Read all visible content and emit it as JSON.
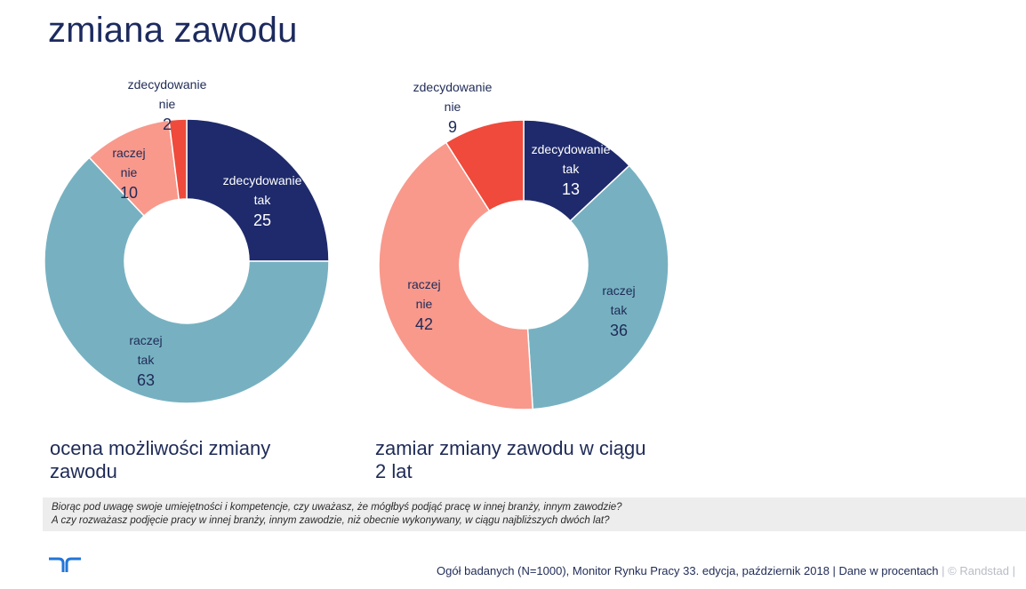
{
  "page": {
    "title": "zmiana zawodu"
  },
  "chart_data": [
    {
      "type": "donut",
      "caption": "ocena możliwości zmiany zawodu",
      "unit": "%",
      "slices": [
        {
          "label": "zdecydowanie tak",
          "value": 25,
          "color": "#1e2a6b"
        },
        {
          "label": "raczej tak",
          "value": 63,
          "color": "#77b1c1"
        },
        {
          "label": "raczej nie",
          "value": 10,
          "color": "#f8998c"
        },
        {
          "label": "zdecydowanie nie",
          "value": 2,
          "color": "#ef4a3b"
        }
      ]
    },
    {
      "type": "donut",
      "caption": "zamiar zmiany zawodu w ciągu 2 lat",
      "unit": "%",
      "slices": [
        {
          "label": "zdecydowanie tak",
          "value": 13,
          "color": "#1e2a6b"
        },
        {
          "label": "raczej tak",
          "value": 36,
          "color": "#77b1c1"
        },
        {
          "label": "raczej nie",
          "value": 42,
          "color": "#f8998c"
        },
        {
          "label": "zdecydowanie nie",
          "value": 9,
          "color": "#ef4a3b"
        }
      ]
    }
  ],
  "question": {
    "line1": "Biorąc pod uwagę swoje umiejętności i kompetencje, czy uważasz, że mógłbyś podjąć pracę w innej branży, innym zawodzie?",
    "line2": "A czy rozważasz podjęcie pracy w innej branży, innym zawodzie, niż obecnie wykonywany, w ciągu najbliższych dwóch lat?"
  },
  "footer": {
    "source": "Ogół badanych (N=1000), Monitor Rynku Pracy 33. edycja, październik 2018 | Dane w procentach",
    "copyright": "| © Randstad  |"
  },
  "logo": {
    "icon": "randstad-logo-icon",
    "color": "#2175d9"
  }
}
